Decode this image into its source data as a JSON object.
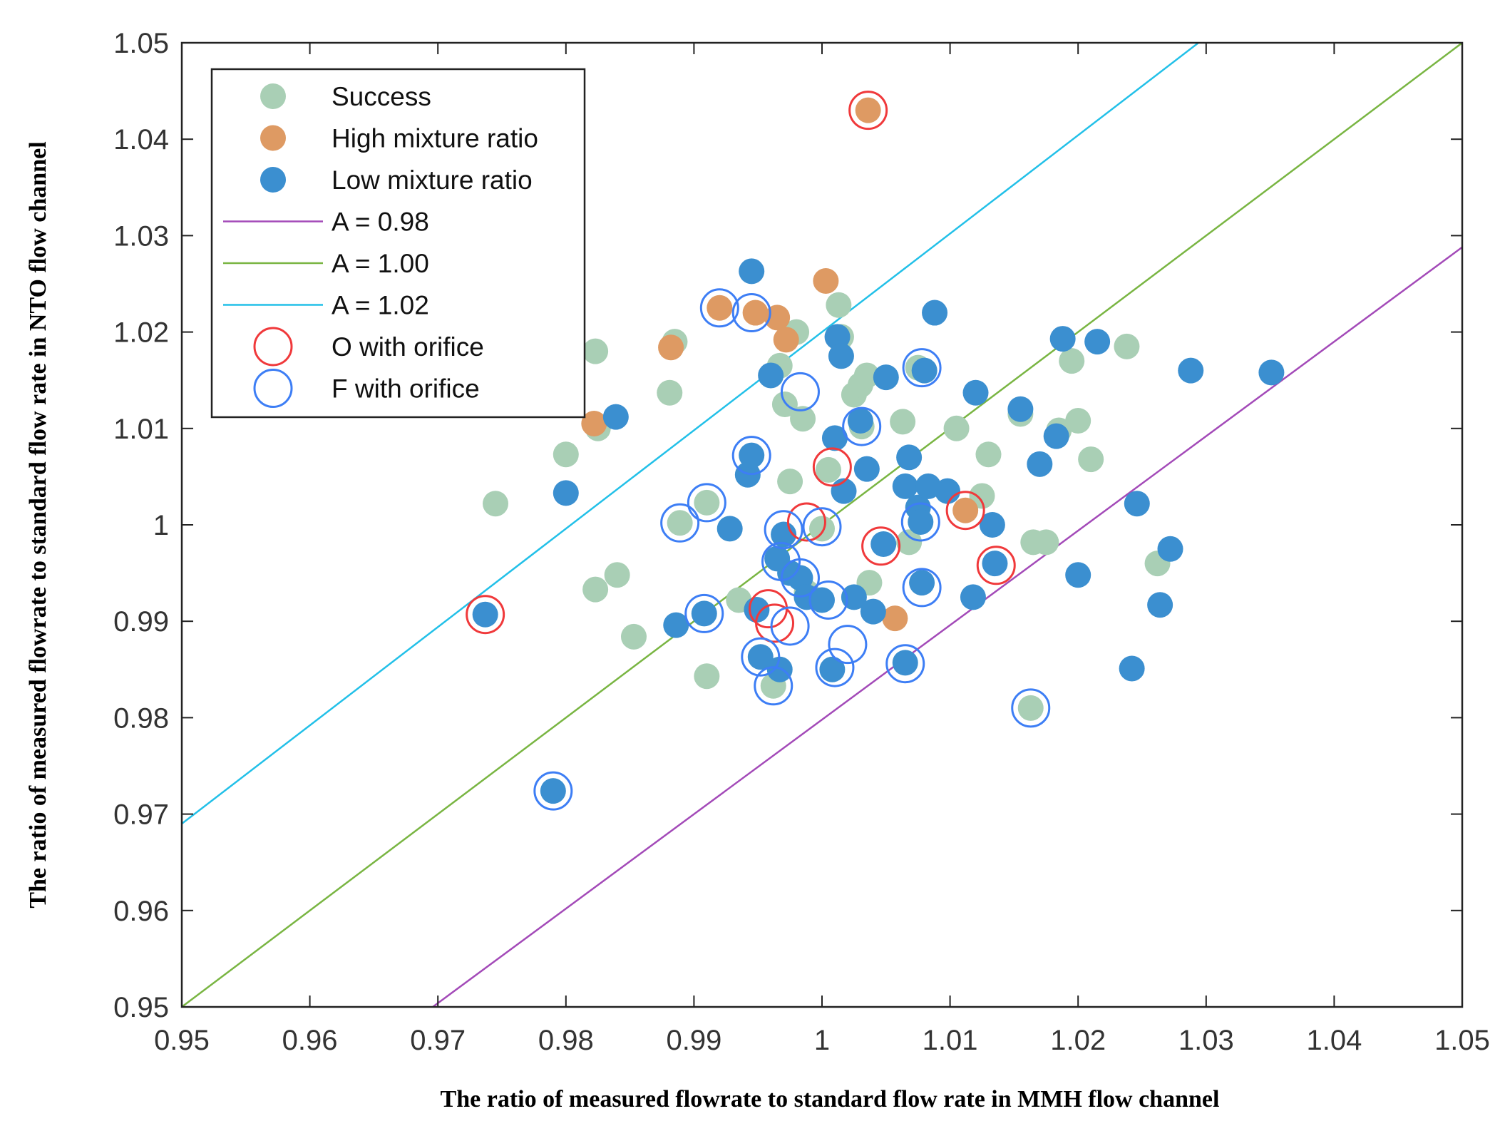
{
  "chart_data": {
    "type": "scatter",
    "xlabel": "The ratio of measured flowrate to standard flow rate in MMH flow channel",
    "ylabel": "The ratio of measured flowrate to standard flow rate in NTO flow channel",
    "xlim": [
      0.95,
      1.05
    ],
    "ylim": [
      0.95,
      1.05
    ],
    "x_ticks": [
      "0.95",
      "0.96",
      "0.97",
      "0.98",
      "0.99",
      "1",
      "1.01",
      "1.02",
      "1.03",
      "1.04",
      "1.05"
    ],
    "y_ticks": [
      "0.95",
      "0.96",
      "0.97",
      "0.98",
      "0.99",
      "1",
      "1.01",
      "1.02",
      "1.03",
      "1.04",
      "1.05"
    ],
    "grid": false,
    "legend_position": "top-left",
    "series": [
      {
        "name": "Success",
        "marker": "filled-circle",
        "color": "#a9cfb5",
        "points": [
          [
            0.9745,
            1.0022
          ],
          [
            0.98,
            1.0073
          ],
          [
            0.9823,
            1.018
          ],
          [
            0.9825,
            1.01
          ],
          [
            0.9823,
            0.9933
          ],
          [
            0.984,
            0.9948
          ],
          [
            0.9853,
            0.9884
          ],
          [
            0.9881,
            1.0137
          ],
          [
            0.9885,
            1.019
          ],
          [
            0.9889,
            1.0002
          ],
          [
            0.991,
            1.0023
          ],
          [
            0.991,
            0.9843
          ],
          [
            0.9935,
            0.9922
          ],
          [
            0.9962,
            0.9833
          ],
          [
            0.9967,
            1.0165
          ],
          [
            0.9971,
            1.0125
          ],
          [
            0.9975,
            1.0045
          ],
          [
            0.998,
            1.02
          ],
          [
            0.9985,
            1.011
          ],
          [
            0.9988,
            0.993
          ],
          [
            1.0,
            0.9996
          ],
          [
            1.0005,
            1.0057
          ],
          [
            1.0013,
            1.0228
          ],
          [
            1.0015,
            1.0195
          ],
          [
            1.0025,
            1.0135
          ],
          [
            1.003,
            1.0145
          ],
          [
            1.0031,
            1.0102
          ],
          [
            1.0035,
            1.0155
          ],
          [
            1.0037,
            0.994
          ],
          [
            1.0063,
            1.0107
          ],
          [
            1.0068,
            0.9982
          ],
          [
            1.0075,
            1.0163
          ],
          [
            1.0105,
            1.01
          ],
          [
            1.0125,
            1.003
          ],
          [
            1.013,
            1.0073
          ],
          [
            1.0155,
            1.0115
          ],
          [
            1.0165,
            0.9982
          ],
          [
            1.0175,
            0.9982
          ],
          [
            1.0185,
            1.0098
          ],
          [
            1.0195,
            1.017
          ],
          [
            1.02,
            1.0108
          ],
          [
            1.021,
            1.0068
          ],
          [
            1.0238,
            1.0185
          ],
          [
            1.0262,
            0.996
          ],
          [
            1.0163,
            0.981
          ]
        ]
      },
      {
        "name": "High mixture ratio",
        "marker": "filled-circle",
        "color": "#de9a63",
        "points": [
          [
            0.9822,
            1.0105
          ],
          [
            0.9882,
            1.0184
          ],
          [
            0.992,
            1.0225
          ],
          [
            0.9948,
            1.022
          ],
          [
            0.9965,
            1.0215
          ],
          [
            0.9972,
            1.0192
          ],
          [
            1.0003,
            1.0253
          ],
          [
            1.0036,
            1.043
          ],
          [
            1.0057,
            0.9903
          ],
          [
            1.0112,
            1.0015
          ]
        ]
      },
      {
        "name": "Low mixture ratio",
        "marker": "filled-circle",
        "color": "#3b8fd0",
        "points": [
          [
            0.9737,
            0.9907
          ],
          [
            0.979,
            0.9724
          ],
          [
            0.98,
            1.0033
          ],
          [
            0.9839,
            1.0112
          ],
          [
            0.9886,
            0.9896
          ],
          [
            0.9908,
            0.9908
          ],
          [
            0.9928,
            0.9996
          ],
          [
            0.9942,
            1.0052
          ],
          [
            0.9945,
            1.0263
          ],
          [
            0.9945,
            1.0072
          ],
          [
            0.9949,
            0.9912
          ],
          [
            0.9952,
            0.9863
          ],
          [
            0.996,
            1.0155
          ],
          [
            0.9965,
            0.9965
          ],
          [
            0.9967,
            0.985
          ],
          [
            0.997,
            0.999
          ],
          [
            0.9975,
            0.995
          ],
          [
            0.9983,
            0.9945
          ],
          [
            0.9988,
            0.9925
          ],
          [
            1.0,
            0.9922
          ],
          [
            1.0008,
            0.985
          ],
          [
            1.001,
            1.009
          ],
          [
            1.0012,
            1.0195
          ],
          [
            1.0015,
            1.0175
          ],
          [
            1.0017,
            1.0035
          ],
          [
            1.0025,
            0.9925
          ],
          [
            1.003,
            1.0108
          ],
          [
            1.0035,
            1.0058
          ],
          [
            1.004,
            0.991
          ],
          [
            1.0048,
            0.998
          ],
          [
            1.005,
            1.0153
          ],
          [
            1.0065,
            1.004
          ],
          [
            1.0065,
            0.9857
          ],
          [
            1.0068,
            1.007
          ],
          [
            1.0075,
            1.0018
          ],
          [
            1.0077,
            1.0003
          ],
          [
            1.0078,
            0.994
          ],
          [
            1.008,
            1.016
          ],
          [
            1.0083,
            1.004
          ],
          [
            1.0088,
            1.022
          ],
          [
            1.0098,
            1.0035
          ],
          [
            1.0118,
            0.9925
          ],
          [
            1.012,
            1.0137
          ],
          [
            1.0133,
            1.0
          ],
          [
            1.0135,
            0.996
          ],
          [
            1.0155,
            1.012
          ],
          [
            1.017,
            1.0063
          ],
          [
            1.0183,
            1.0092
          ],
          [
            1.0188,
            1.0193
          ],
          [
            1.02,
            0.9948
          ],
          [
            1.0215,
            1.019
          ],
          [
            1.0242,
            0.9851
          ],
          [
            1.0246,
            1.0022
          ],
          [
            1.0264,
            0.9917
          ],
          [
            1.0272,
            0.9975
          ],
          [
            1.0288,
            1.016
          ],
          [
            1.0351,
            1.0158
          ]
        ]
      },
      {
        "name": "O with orifice",
        "marker": "open-circle",
        "color": "#f0393b",
        "points": [
          [
            0.9737,
            0.9907
          ],
          [
            0.9958,
            0.9913
          ],
          [
            0.9963,
            0.9898
          ],
          [
            0.9988,
            1.0003
          ],
          [
            1.0008,
            1.006
          ],
          [
            1.0046,
            0.9978
          ],
          [
            1.0112,
            1.0015
          ],
          [
            1.0136,
            0.9958
          ],
          [
            1.0036,
            1.043
          ]
        ]
      },
      {
        "name": "F with orifice",
        "marker": "open-circle",
        "color": "#3d7ef5",
        "points": [
          [
            0.979,
            0.9724
          ],
          [
            0.9889,
            1.0002
          ],
          [
            0.991,
            1.0023
          ],
          [
            0.9908,
            0.9908
          ],
          [
            0.992,
            1.0225
          ],
          [
            0.9945,
            1.022
          ],
          [
            0.9945,
            1.0072
          ],
          [
            0.9952,
            0.9863
          ],
          [
            0.9962,
            0.9833
          ],
          [
            0.9968,
            0.9962
          ],
          [
            0.997,
            0.9995
          ],
          [
            0.9975,
            0.9895
          ],
          [
            0.9983,
            1.0138
          ],
          [
            0.9983,
            0.9945
          ],
          [
            1.0,
            0.9998
          ],
          [
            1.0005,
            0.9922
          ],
          [
            1.001,
            0.9852
          ],
          [
            1.002,
            0.9876
          ],
          [
            1.0031,
            1.0102
          ],
          [
            1.0065,
            0.9856
          ],
          [
            1.0077,
            1.0003
          ],
          [
            1.0078,
            0.9935
          ],
          [
            1.0078,
            1.0163
          ],
          [
            1.0163,
            0.981
          ]
        ]
      },
      {
        "name": "A = 0.98",
        "marker": "line",
        "color": "#a34ab8",
        "points": [
          [
            0.9696,
            0.95
          ],
          [
            1.05,
            1.0288
          ]
        ]
      },
      {
        "name": "A = 1.00",
        "marker": "line",
        "color": "#79b542",
        "points": [
          [
            0.95,
            0.95
          ],
          [
            1.05,
            1.05
          ]
        ]
      },
      {
        "name": "A = 1.02",
        "marker": "line",
        "color": "#22c0e8",
        "points": [
          [
            0.95,
            0.969
          ],
          [
            1.0294,
            1.05
          ]
        ]
      }
    ],
    "legend": [
      {
        "label": "Success",
        "symbol": "filled-circle",
        "color": "#a9cfb5"
      },
      {
        "label": "High mixture ratio",
        "symbol": "filled-circle",
        "color": "#de9a63"
      },
      {
        "label": "Low mixture ratio",
        "symbol": "filled-circle",
        "color": "#3b8fd0"
      },
      {
        "label": "A = 0.98",
        "symbol": "line",
        "color": "#a34ab8"
      },
      {
        "label": "A = 1.00",
        "symbol": "line",
        "color": "#79b542"
      },
      {
        "label": "A = 1.02",
        "symbol": "line",
        "color": "#22c0e8"
      },
      {
        "label": "O with orifice",
        "symbol": "open-circle",
        "color": "#f0393b"
      },
      {
        "label": "F with orifice",
        "symbol": "open-circle",
        "color": "#3d7ef5"
      }
    ]
  }
}
